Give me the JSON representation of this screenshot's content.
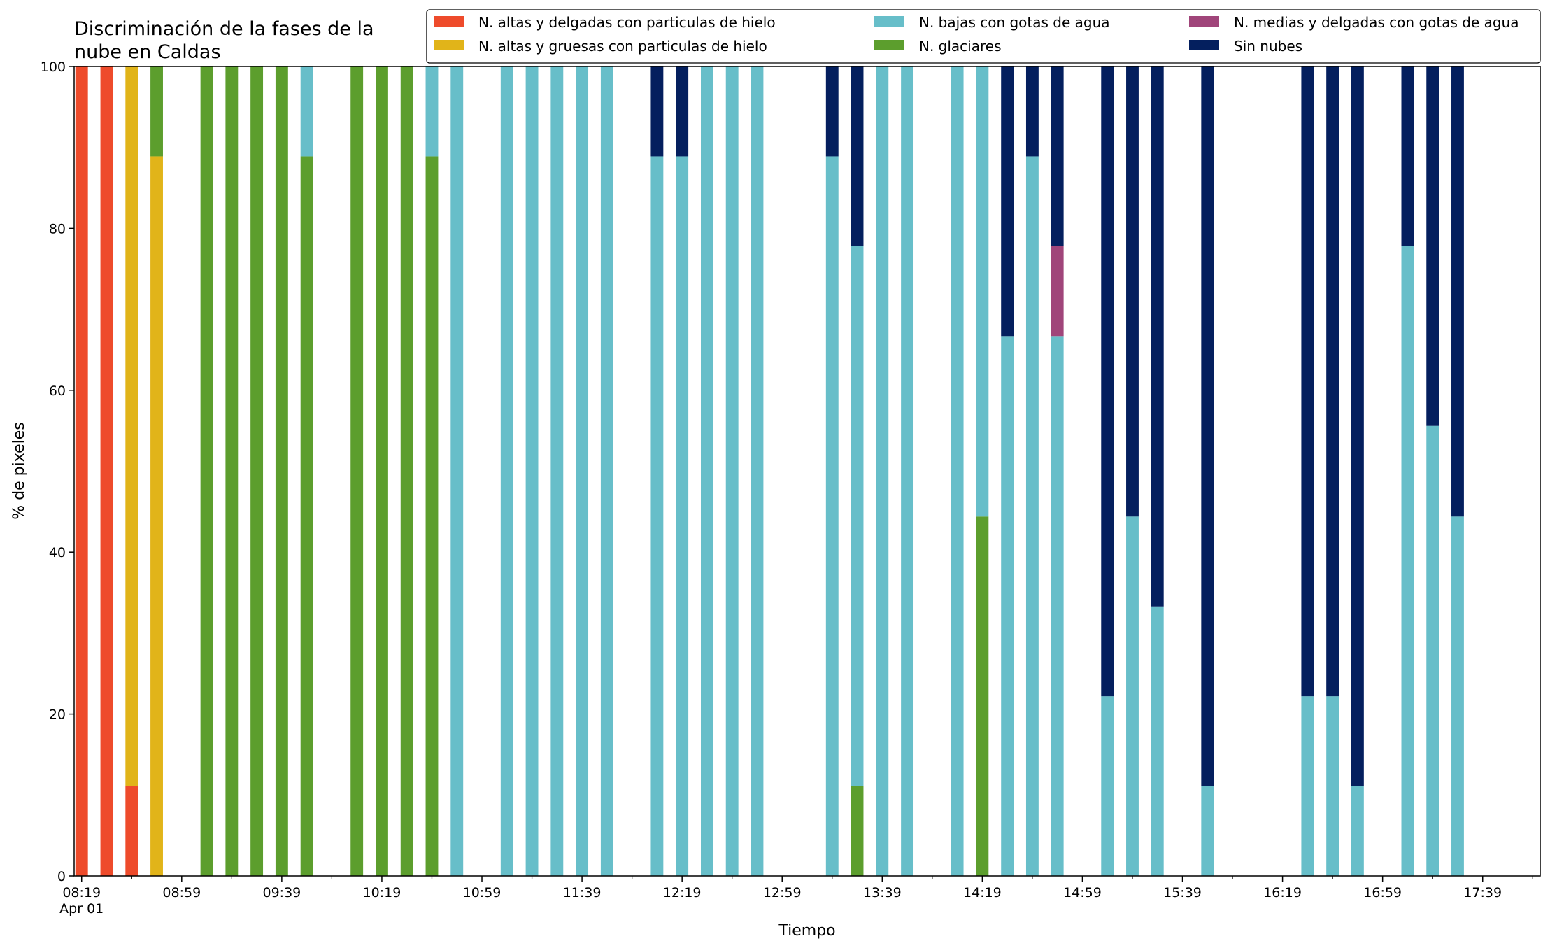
{
  "chart_data": {
    "type": "bar",
    "stacked": true,
    "title_lines": [
      "Discriminación de la fases de la",
      "nube en Caldas"
    ],
    "xlabel": "Tiempo",
    "ylabel": "% de pixeles",
    "ylim": [
      0,
      100
    ],
    "yticks": [
      0,
      20,
      40,
      60,
      80,
      100
    ],
    "grid": false,
    "legend_position": "top-right",
    "legend_columns": 3,
    "time_unit": "minutes since 08:19",
    "bar_interval_min": 10,
    "x_range_min": [
      -3,
      583
    ],
    "xticks": [
      {
        "t": 0,
        "label": "08:19",
        "sublabel": "Apr 01"
      },
      {
        "t": 40,
        "label": "08:59"
      },
      {
        "t": 80,
        "label": "09:39"
      },
      {
        "t": 120,
        "label": "10:19"
      },
      {
        "t": 160,
        "label": "10:59"
      },
      {
        "t": 200,
        "label": "11:39"
      },
      {
        "t": 240,
        "label": "12:19"
      },
      {
        "t": 280,
        "label": "12:59"
      },
      {
        "t": 320,
        "label": "13:39"
      },
      {
        "t": 360,
        "label": "14:19"
      },
      {
        "t": 400,
        "label": "14:59"
      },
      {
        "t": 440,
        "label": "15:39"
      },
      {
        "t": 480,
        "label": "16:19"
      },
      {
        "t": 520,
        "label": "16:59"
      },
      {
        "t": 560,
        "label": "17:39"
      }
    ],
    "series": [
      {
        "name": "N. altas y delgadas con particulas de hielo",
        "color": "#ee4b2b"
      },
      {
        "name": "N. altas y gruesas con particulas de hielo",
        "color": "#e1b419"
      },
      {
        "name": "N. bajas con gotas de agua",
        "color": "#67bec9"
      },
      {
        "name": "N. glaciares",
        "color": "#5c9e2d"
      },
      {
        "name": "N. medias y delgadas con gotas de agua",
        "color": "#a0457a"
      },
      {
        "name": "Sin nubes",
        "color": "#041f5e"
      }
    ],
    "stack_order": [
      0,
      1,
      3,
      2,
      4,
      5
    ],
    "bars": [
      {
        "t": 0,
        "values": [
          100,
          0,
          0,
          0,
          0,
          0
        ]
      },
      {
        "t": 10,
        "values": [
          100,
          0,
          0,
          0,
          0,
          0
        ]
      },
      {
        "t": 20,
        "values": [
          11.1,
          88.9,
          0,
          0,
          0,
          0
        ]
      },
      {
        "t": 30,
        "values": [
          0,
          88.9,
          0,
          11.1,
          0,
          0
        ]
      },
      {
        "t": 50,
        "values": [
          0,
          0,
          0,
          100,
          0,
          0
        ]
      },
      {
        "t": 60,
        "values": [
          0,
          0,
          0,
          100,
          0,
          0
        ]
      },
      {
        "t": 70,
        "values": [
          0,
          0,
          0,
          100,
          0,
          0
        ]
      },
      {
        "t": 80,
        "values": [
          0,
          0,
          0,
          100,
          0,
          0
        ]
      },
      {
        "t": 90,
        "values": [
          0,
          0,
          11.1,
          88.9,
          0,
          0
        ]
      },
      {
        "t": 110,
        "values": [
          0,
          0,
          0,
          100,
          0,
          0
        ]
      },
      {
        "t": 120,
        "values": [
          0,
          0,
          0,
          100,
          0,
          0
        ]
      },
      {
        "t": 130,
        "values": [
          0,
          0,
          0,
          100,
          0,
          0
        ]
      },
      {
        "t": 140,
        "values": [
          0,
          0,
          11.1,
          88.9,
          0,
          0
        ]
      },
      {
        "t": 150,
        "values": [
          0,
          0,
          100,
          0,
          0,
          0
        ]
      },
      {
        "t": 170,
        "values": [
          0,
          0,
          100,
          0,
          0,
          0
        ]
      },
      {
        "t": 180,
        "values": [
          0,
          0,
          100,
          0,
          0,
          0
        ]
      },
      {
        "t": 190,
        "values": [
          0,
          0,
          100,
          0,
          0,
          0
        ]
      },
      {
        "t": 200,
        "values": [
          0,
          0,
          100,
          0,
          0,
          0
        ]
      },
      {
        "t": 210,
        "values": [
          0,
          0,
          100,
          0,
          0,
          0
        ]
      },
      {
        "t": 230,
        "values": [
          0,
          0,
          88.9,
          0,
          0,
          11.1
        ]
      },
      {
        "t": 240,
        "values": [
          0,
          0,
          88.9,
          0,
          0,
          11.1
        ]
      },
      {
        "t": 250,
        "values": [
          0,
          0,
          100,
          0,
          0,
          0
        ]
      },
      {
        "t": 260,
        "values": [
          0,
          0,
          100,
          0,
          0,
          0
        ]
      },
      {
        "t": 270,
        "values": [
          0,
          0,
          100,
          0,
          0,
          0
        ]
      },
      {
        "t": 300,
        "values": [
          0,
          0,
          88.9,
          0,
          0,
          11.1
        ]
      },
      {
        "t": 310,
        "values": [
          0,
          0,
          66.7,
          11.1,
          0,
          22.2
        ]
      },
      {
        "t": 320,
        "values": [
          0,
          0,
          100,
          0,
          0,
          0
        ]
      },
      {
        "t": 330,
        "values": [
          0,
          0,
          100,
          0,
          0,
          0
        ]
      },
      {
        "t": 350,
        "values": [
          0,
          0,
          100,
          0,
          0,
          0
        ]
      },
      {
        "t": 360,
        "values": [
          0,
          0,
          55.6,
          44.4,
          0,
          0
        ]
      },
      {
        "t": 370,
        "values": [
          0,
          0,
          66.7,
          0,
          0,
          33.3
        ]
      },
      {
        "t": 380,
        "values": [
          0,
          0,
          88.9,
          0,
          0,
          11.1
        ]
      },
      {
        "t": 390,
        "values": [
          0,
          0,
          66.7,
          0,
          11.1,
          22.2
        ]
      },
      {
        "t": 410,
        "values": [
          0,
          0,
          22.2,
          0,
          0,
          77.8
        ]
      },
      {
        "t": 420,
        "values": [
          0,
          0,
          44.4,
          0,
          0,
          55.6
        ]
      },
      {
        "t": 430,
        "values": [
          0,
          0,
          33.3,
          0,
          0,
          66.7
        ]
      },
      {
        "t": 450,
        "values": [
          0,
          0,
          11.1,
          0,
          0,
          88.9
        ]
      },
      {
        "t": 490,
        "values": [
          0,
          0,
          22.2,
          0,
          0,
          77.8
        ]
      },
      {
        "t": 500,
        "values": [
          0,
          0,
          22.2,
          0,
          0,
          77.8
        ]
      },
      {
        "t": 510,
        "values": [
          0,
          0,
          11.1,
          0,
          0,
          88.9
        ]
      },
      {
        "t": 530,
        "values": [
          0,
          0,
          77.8,
          0,
          0,
          22.2
        ]
      },
      {
        "t": 540,
        "values": [
          0,
          0,
          55.6,
          0,
          0,
          44.4
        ]
      },
      {
        "t": 550,
        "values": [
          0,
          0,
          44.4,
          0,
          0,
          55.6
        ]
      }
    ]
  }
}
